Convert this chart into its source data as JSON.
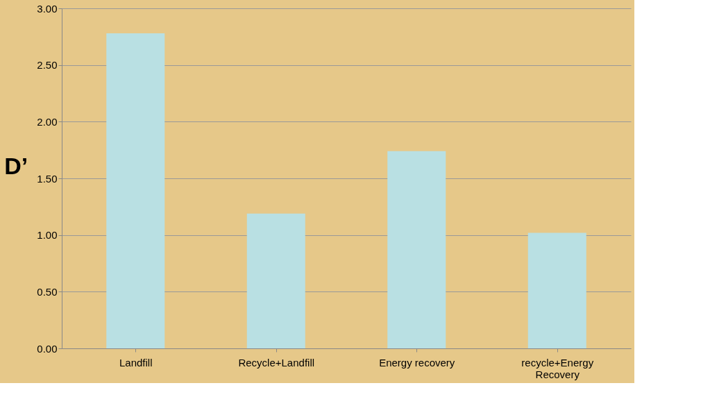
{
  "chart_data": {
    "type": "bar",
    "ylabel": "D’",
    "categories": [
      "Landfill",
      "Recycle+Landfill",
      "Energy recovery",
      "recycle+Energy Recovery"
    ],
    "values": [
      2.78,
      1.19,
      1.74,
      1.02
    ],
    "color": "#b9e0e3",
    "ylim": [
      0,
      3
    ],
    "yticks": [
      {
        "value": 0,
        "label": "0.00"
      },
      {
        "value": 0.5,
        "label": "0.50"
      },
      {
        "value": 1,
        "label": "1.00"
      },
      {
        "value": 1.5,
        "label": "1.50"
      },
      {
        "value": 2,
        "label": "2.00"
      },
      {
        "value": 2.5,
        "label": "2.50"
      },
      {
        "value": 3,
        "label": "3.00"
      }
    ],
    "grid": "y"
  }
}
